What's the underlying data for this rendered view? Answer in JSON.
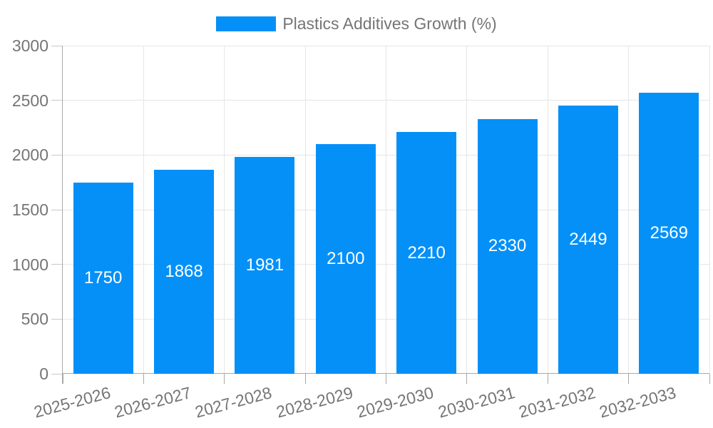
{
  "chart_data": {
    "type": "bar",
    "title": "Plastics Additives Growth (%)",
    "categories": [
      "2025-2026",
      "2026-2027",
      "2027-2028",
      "2028-2029",
      "2029-2030",
      "2030-2031",
      "2031-2032",
      "2032-2033"
    ],
    "values": [
      1750,
      1868,
      1981,
      2100,
      2210,
      2330,
      2449,
      2569
    ],
    "ylim": [
      0,
      3000
    ],
    "ytick_step": 500,
    "ytick_labels": [
      "0",
      "500",
      "1000",
      "1500",
      "2000",
      "2500",
      "3000"
    ],
    "grid": true,
    "legend_position": "top",
    "xlabel": "",
    "ylabel": "",
    "xlabel_rotation_deg": -15,
    "bar_color": "#0590f8",
    "bar_label_color": "#ffffff",
    "axis_text_color": "#757575",
    "gridline_color": "#e6e6e6",
    "axis_line_color": "#a8a8a8"
  }
}
